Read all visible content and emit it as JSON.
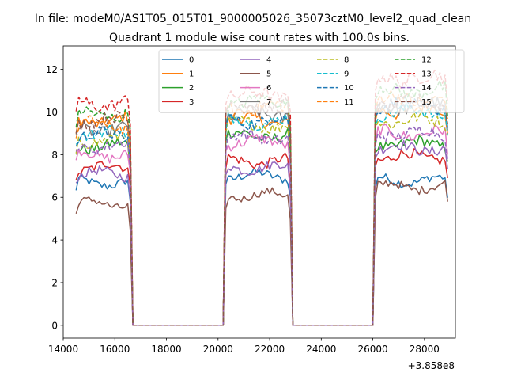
{
  "suptitle": "In file: modeM0/AS1T05_015T01_9000005026_35073cztM0_level2_quad_clean",
  "title": "Quadrant 1 module wise count rates with 100.0s bins.",
  "axis_offset_label": "+3.858e8",
  "chart_data": {
    "type": "line",
    "title": "Quadrant 1 module wise count rates with 100.0s bins.",
    "xlabel": "",
    "ylabel": "",
    "x_offset": 385800000,
    "xlim": [
      14000,
      29200
    ],
    "ylim": [
      -0.6,
      13.1
    ],
    "xticks": [
      14000,
      16000,
      18000,
      20000,
      22000,
      24000,
      26000,
      28000
    ],
    "xtick_labels": [
      "14000",
      "16000",
      "18000",
      "20000",
      "22000",
      "24000",
      "26000",
      "28000"
    ],
    "yticks": [
      0,
      2,
      4,
      6,
      8,
      10,
      12
    ],
    "ytick_labels": [
      "0",
      "2",
      "4",
      "6",
      "8",
      "10",
      "12"
    ],
    "grid": false,
    "legend_position": "upper-center",
    "legend_columns": 4,
    "segments": [
      {
        "start": 14500,
        "end": 16600,
        "low": 16700,
        "rise_from": null
      },
      {
        "start": 20300,
        "end": 22800,
        "low": 22900,
        "rise_from": 20200
      },
      {
        "start": 26100,
        "end": 28900,
        "low": null,
        "rise_from": 26000
      }
    ],
    "gap_level": 0,
    "series": [
      {
        "name": "0",
        "color": "#1f77b4",
        "dash": "solid",
        "rates": [
          6.7,
          7.0,
          6.8
        ]
      },
      {
        "name": "1",
        "color": "#ff7f0e",
        "dash": "solid",
        "rates": [
          9.6,
          9.6,
          10.1
        ]
      },
      {
        "name": "2",
        "color": "#2ca02c",
        "dash": "solid",
        "rates": [
          8.4,
          8.9,
          8.5
        ]
      },
      {
        "name": "3",
        "color": "#d62728",
        "dash": "solid",
        "rates": [
          7.4,
          7.7,
          7.9
        ]
      },
      {
        "name": "4",
        "color": "#9467bd",
        "dash": "solid",
        "rates": [
          7.1,
          7.4,
          8.3
        ]
      },
      {
        "name": "5",
        "color": "#8c564b",
        "dash": "solid",
        "rates": [
          5.7,
          6.1,
          6.5
        ]
      },
      {
        "name": "6",
        "color": "#e377c2",
        "dash": "solid",
        "rates": [
          8.0,
          8.6,
          9.0
        ]
      },
      {
        "name": "7",
        "color": "#7f7f7f",
        "dash": "solid",
        "rates": [
          9.2,
          9.9,
          10.3
        ]
      },
      {
        "name": "8",
        "color": "#bcbd22",
        "dash": "dashed",
        "rates": [
          8.7,
          9.4,
          9.6
        ]
      },
      {
        "name": "9",
        "color": "#17becf",
        "dash": "dashed",
        "rates": [
          9.0,
          9.6,
          10.0
        ]
      },
      {
        "name": "10",
        "color": "#1f77b4",
        "dash": "dashed",
        "rates": [
          8.9,
          9.6,
          10.3
        ]
      },
      {
        "name": "11",
        "color": "#ff7f0e",
        "dash": "dashed",
        "rates": [
          9.4,
          10.2,
          10.6
        ]
      },
      {
        "name": "12",
        "color": "#2ca02c",
        "dash": "dashed",
        "rates": [
          9.9,
          10.5,
          11.0
        ]
      },
      {
        "name": "13",
        "color": "#d62728",
        "dash": "dashed",
        "rates": [
          10.4,
          10.8,
          11.6
        ]
      },
      {
        "name": "14",
        "color": "#9467bd",
        "dash": "dashed",
        "rates": [
          8.4,
          8.8,
          9.0
        ]
      },
      {
        "name": "15",
        "color": "#8c564b",
        "dash": "dashed",
        "rates": [
          9.6,
          10.3,
          10.4
        ]
      }
    ]
  }
}
